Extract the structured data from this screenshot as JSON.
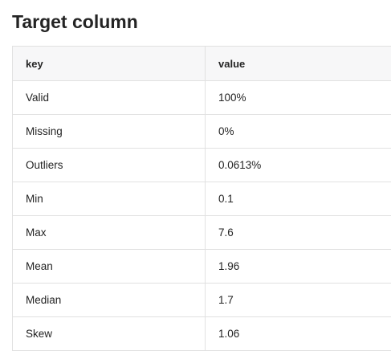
{
  "title": "Target column",
  "table": {
    "headers": [
      "key",
      "value"
    ],
    "rows": [
      {
        "key": "Valid",
        "value": "100%"
      },
      {
        "key": "Missing",
        "value": "0%"
      },
      {
        "key": "Outliers",
        "value": "0.0613%"
      },
      {
        "key": "Min",
        "value": "0.1"
      },
      {
        "key": "Max",
        "value": "7.6"
      },
      {
        "key": "Mean",
        "value": "1.96"
      },
      {
        "key": "Median",
        "value": "1.7"
      },
      {
        "key": "Skew",
        "value": "1.06"
      }
    ]
  }
}
